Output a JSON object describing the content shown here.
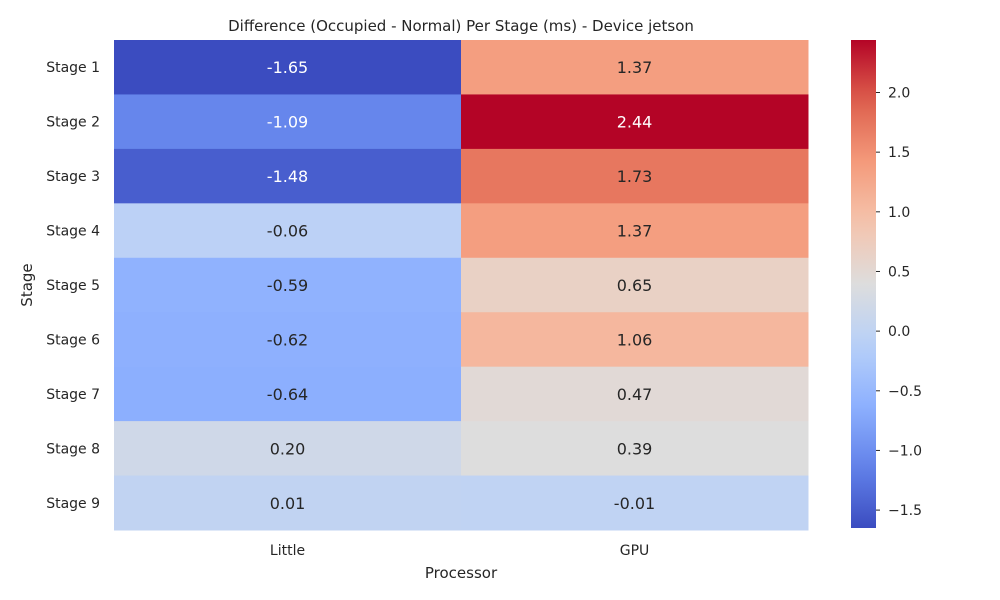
{
  "chart_data": {
    "type": "heatmap",
    "title": "Difference (Occupied - Normal) Per Stage (ms) - Device jetson",
    "xlabel": "Processor",
    "ylabel": "Stage",
    "columns": [
      "Little",
      "GPU"
    ],
    "rows": [
      "Stage 1",
      "Stage 2",
      "Stage 3",
      "Stage 4",
      "Stage 5",
      "Stage 6",
      "Stage 7",
      "Stage 8",
      "Stage 9"
    ],
    "values": [
      [
        -1.65,
        1.37
      ],
      [
        -1.09,
        2.44
      ],
      [
        -1.48,
        1.73
      ],
      [
        -0.06,
        1.37
      ],
      [
        -0.59,
        0.65
      ],
      [
        -0.62,
        1.06
      ],
      [
        -0.64,
        0.47
      ],
      [
        0.2,
        0.39
      ],
      [
        0.01,
        -0.01
      ]
    ],
    "value_labels": [
      [
        "-1.65",
        "1.37"
      ],
      [
        "-1.09",
        "2.44"
      ],
      [
        "-1.48",
        "1.73"
      ],
      [
        "-0.06",
        "1.37"
      ],
      [
        "-0.59",
        "0.65"
      ],
      [
        "-0.62",
        "1.06"
      ],
      [
        "-0.64",
        "0.47"
      ],
      [
        "0.20",
        "0.39"
      ],
      [
        "0.01",
        "-0.01"
      ]
    ],
    "colormap": "coolwarm",
    "vmin": -1.65,
    "vmax": 2.44,
    "colorbar_ticks": [
      -1.5,
      -1.0,
      -0.5,
      0.0,
      0.5,
      1.0,
      1.5,
      2.0
    ],
    "colorbar_tick_labels": [
      "−1.5",
      "−1.0",
      "−0.5",
      "0.0",
      "0.5",
      "1.0",
      "1.5",
      "2.0"
    ],
    "grid": false,
    "legend": "colorbar-right"
  }
}
